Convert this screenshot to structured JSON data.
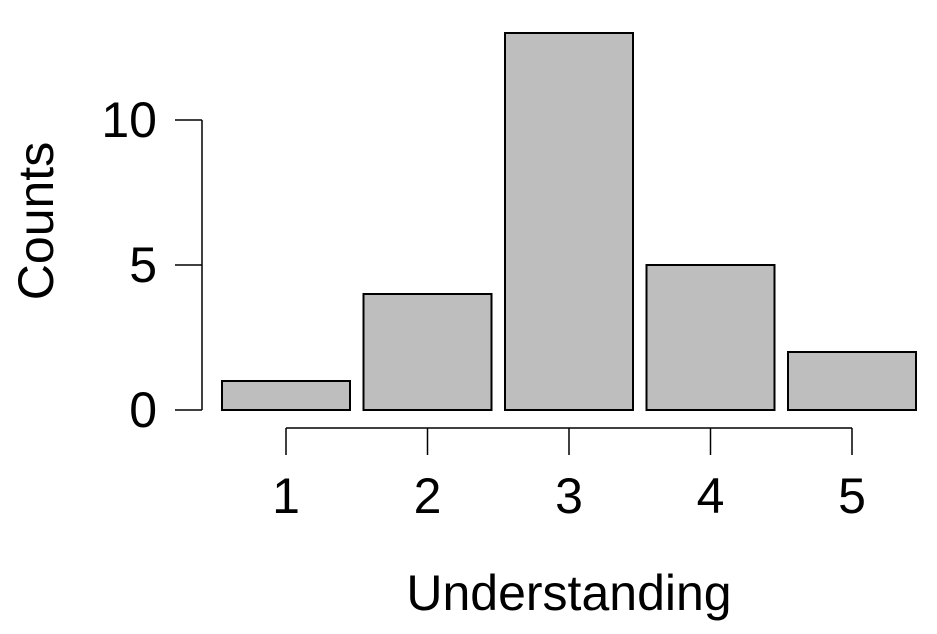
{
  "chart_data": {
    "type": "bar",
    "categories": [
      "1",
      "2",
      "3",
      "4",
      "5"
    ],
    "values": [
      1,
      4,
      13,
      5,
      2
    ],
    "title": "",
    "xlabel": "Understanding",
    "ylabel": "Counts",
    "ylim": [
      0,
      13
    ],
    "yticks": [
      0,
      5,
      10
    ],
    "grid": false,
    "legend": "none",
    "bar_fill": "#bebebe",
    "bar_stroke": "#000000"
  }
}
